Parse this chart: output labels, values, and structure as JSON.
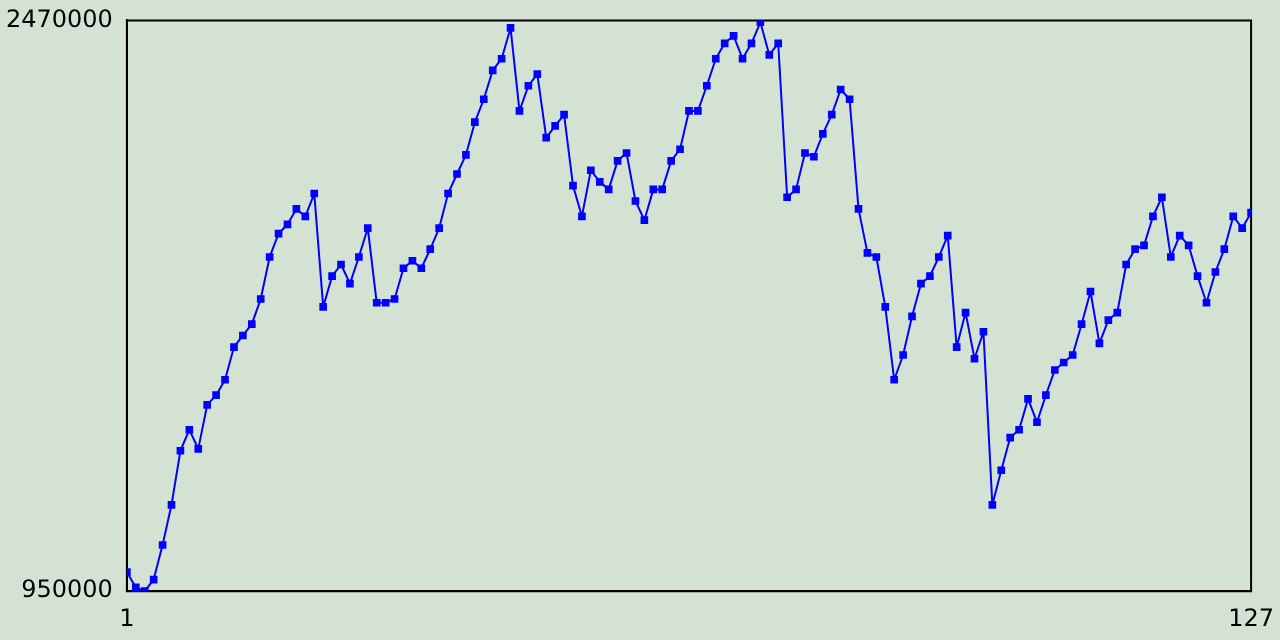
{
  "chart_data": {
    "type": "line",
    "x": [
      1,
      2,
      3,
      4,
      5,
      6,
      7,
      8,
      9,
      10,
      11,
      12,
      13,
      14,
      15,
      16,
      17,
      18,
      19,
      20,
      21,
      22,
      23,
      24,
      25,
      26,
      27,
      28,
      29,
      30,
      31,
      32,
      33,
      34,
      35,
      36,
      37,
      38,
      39,
      40,
      41,
      42,
      43,
      44,
      45,
      46,
      47,
      48,
      49,
      50,
      51,
      52,
      53,
      54,
      55,
      56,
      57,
      58,
      59,
      60,
      61,
      62,
      63,
      64,
      65,
      66,
      67,
      68,
      69,
      70,
      71,
      72,
      73,
      74,
      75,
      76,
      77,
      78,
      79,
      80,
      81,
      82,
      83,
      84,
      85,
      86,
      87,
      88,
      89,
      90,
      91,
      92,
      93,
      94,
      95,
      96,
      97,
      98,
      99,
      100,
      101,
      102,
      103,
      104,
      105,
      106,
      107,
      108,
      109,
      110,
      111,
      112,
      113,
      114,
      115,
      116,
      117,
      118,
      119,
      120,
      121,
      122,
      123,
      124,
      125,
      126,
      127
    ],
    "series": [
      {
        "color": "#0000ff",
        "values": [
          1001000,
          960000,
          950000,
          981000,
          1073000,
          1180000,
          1324000,
          1380000,
          1329000,
          1446000,
          1472000,
          1513000,
          1600000,
          1631000,
          1661000,
          1728000,
          1840000,
          1902000,
          1927000,
          1968000,
          1948000,
          2009000,
          1707000,
          1789000,
          1820000,
          1769000,
          1840000,
          1917000,
          1718000,
          1718000,
          1728000,
          1810000,
          1830000,
          1810000,
          1861000,
          1917000,
          2009000,
          2061000,
          2112000,
          2199000,
          2260000,
          2337000,
          2368000,
          2450000,
          2229000,
          2296000,
          2327000,
          2158000,
          2189000,
          2219000,
          2030000,
          1948000,
          2071000,
          2040000,
          2020000,
          2096000,
          2117000,
          1989000,
          1938000,
          2020000,
          2020000,
          2096000,
          2127000,
          2229000,
          2229000,
          2296000,
          2368000,
          2409000,
          2429000,
          2368000,
          2409000,
          2465000,
          2378000,
          2409000,
          1999000,
          2020000,
          2117000,
          2107000,
          2168000,
          2219000,
          2286000,
          2260000,
          1968000,
          1851000,
          1840000,
          1707000,
          1513000,
          1579000,
          1682000,
          1769000,
          1789000,
          1840000,
          1897000,
          1600000,
          1692000,
          1569000,
          1641000,
          1180000,
          1272000,
          1359000,
          1380000,
          1462000,
          1400000,
          1472000,
          1539000,
          1559000,
          1579000,
          1661000,
          1748000,
          1610000,
          1672000,
          1692000,
          1820000,
          1861000,
          1871000,
          1948000,
          1999000,
          1840000,
          1897000,
          1871000,
          1789000,
          1718000,
          1800000,
          1861000,
          1948000,
          1917000,
          1958000
        ]
      }
    ],
    "xlim": [
      1,
      127
    ],
    "xticks": [
      1,
      127
    ],
    "ylim": [
      950000,
      2470000
    ],
    "yticks": [
      950000,
      2470000
    ],
    "grid": false,
    "legend": false,
    "marker": "square",
    "line_style": "solid"
  }
}
